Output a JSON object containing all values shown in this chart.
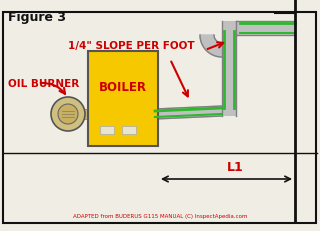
{
  "title": "Figure 3",
  "slope_label": "1/4\" SLOPE PER FOOT",
  "boiler_label": "BOILER",
  "oil_burner_label": "OIL BURNER",
  "l1_label": "L1",
  "footer": "ADAPTED from BUDERUS G115 MANUAL (C) InspectApedia.com",
  "bg_color": "#f0ede4",
  "boiler_fill": "#f5c800",
  "boiler_edge": "#555555",
  "duct_gray": "#c0c0c0",
  "duct_edge": "#808080",
  "green_color": "#2db82d",
  "red_color": "#cc0000",
  "black": "#111111",
  "chimney_color": "#333333"
}
